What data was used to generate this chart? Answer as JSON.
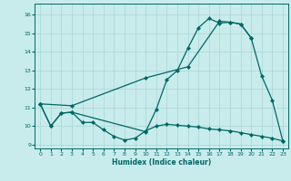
{
  "xlabel": "Humidex (Indice chaleur)",
  "bg_color": "#c8ecec",
  "grid_color": "#aad4d4",
  "line_color": "#006666",
  "xlim": [
    -0.5,
    23.5
  ],
  "ylim": [
    8.8,
    16.6
  ],
  "xticks": [
    0,
    1,
    2,
    3,
    4,
    5,
    6,
    7,
    8,
    9,
    10,
    11,
    12,
    13,
    14,
    15,
    16,
    17,
    18,
    19,
    20,
    21,
    22,
    23
  ],
  "yticks": [
    9,
    10,
    11,
    12,
    13,
    14,
    15,
    16
  ],
  "series1": [
    [
      0,
      11.2
    ],
    [
      1,
      10.0
    ],
    [
      2,
      10.7
    ],
    [
      3,
      10.75
    ],
    [
      4,
      10.2
    ],
    [
      5,
      10.2
    ],
    [
      6,
      9.8
    ],
    [
      7,
      9.45
    ],
    [
      8,
      9.25
    ],
    [
      9,
      9.35
    ],
    [
      10,
      9.75
    ],
    [
      11,
      10.0
    ],
    [
      12,
      10.1
    ],
    [
      13,
      10.05
    ],
    [
      14,
      10.0
    ],
    [
      15,
      9.95
    ],
    [
      16,
      9.85
    ],
    [
      17,
      9.8
    ],
    [
      18,
      9.75
    ],
    [
      19,
      9.65
    ],
    [
      20,
      9.55
    ],
    [
      21,
      9.45
    ],
    [
      22,
      9.35
    ],
    [
      23,
      9.2
    ]
  ],
  "series2": [
    [
      0,
      11.2
    ],
    [
      1,
      10.0
    ],
    [
      2,
      10.7
    ],
    [
      3,
      10.75
    ],
    [
      10,
      9.7
    ],
    [
      11,
      10.9
    ],
    [
      12,
      12.5
    ],
    [
      13,
      13.0
    ],
    [
      14,
      14.2
    ],
    [
      15,
      15.3
    ],
    [
      16,
      15.8
    ],
    [
      17,
      15.55
    ],
    [
      18,
      15.6
    ],
    [
      19,
      15.5
    ],
    [
      20,
      14.75
    ],
    [
      21,
      12.7
    ],
    [
      22,
      11.4
    ],
    [
      23,
      9.2
    ]
  ],
  "series3": [
    [
      0,
      11.2
    ],
    [
      3,
      11.1
    ],
    [
      10,
      12.6
    ],
    [
      14,
      13.2
    ],
    [
      17,
      15.65
    ],
    [
      18,
      15.6
    ],
    [
      19,
      15.5
    ],
    [
      20,
      14.75
    ]
  ]
}
